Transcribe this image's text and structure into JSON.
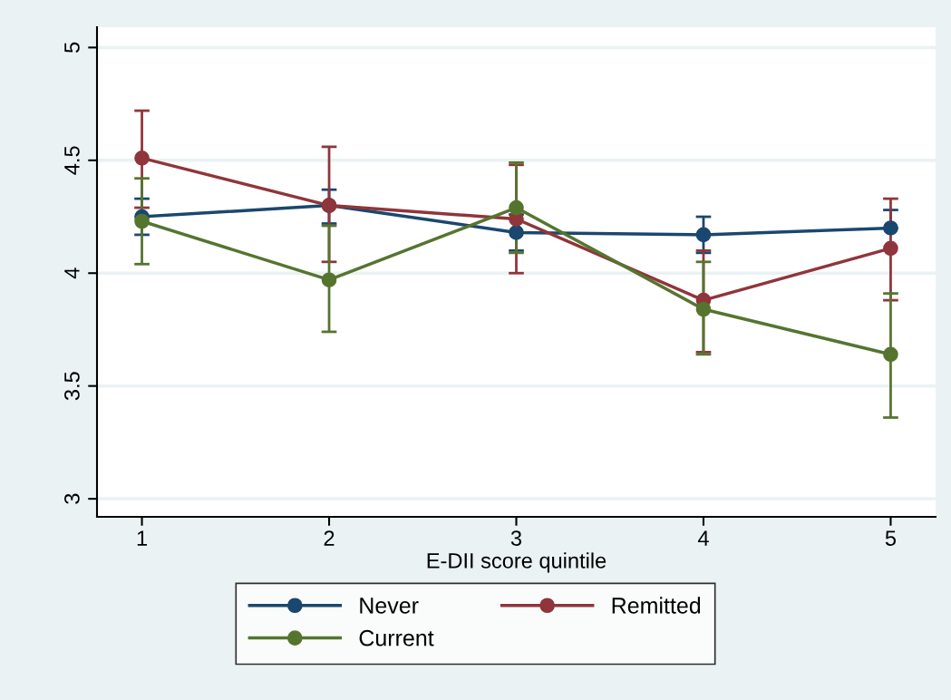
{
  "chart_data": {
    "type": "line",
    "xlabel": "E-DII score quintile",
    "x": [
      1,
      2,
      3,
      4,
      5
    ],
    "xlim": [
      0.76,
      5.24
    ],
    "xticks": [
      1,
      2,
      3,
      4,
      5
    ],
    "ylim": [
      2.92,
      5.09
    ],
    "yticks": [
      3,
      3.5,
      4,
      4.5,
      5
    ],
    "grid": "y",
    "legend": "bottom",
    "marker": "circle",
    "line_style": "solid",
    "series": [
      {
        "name": "Never",
        "color": "#1a476f",
        "values": [
          4.25,
          4.3,
          4.18,
          4.17,
          4.2
        ],
        "errors": [
          [
            4.17,
            4.33
          ],
          [
            4.22,
            4.37
          ],
          [
            4.1,
            4.26
          ],
          [
            4.09,
            4.25
          ],
          [
            4.2,
            4.28
          ]
        ]
      },
      {
        "name": "Remitted",
        "color": "#90353b",
        "values": [
          4.51,
          4.3,
          4.24,
          3.88,
          4.11
        ],
        "errors": [
          [
            4.29,
            4.72
          ],
          [
            4.05,
            4.56
          ],
          [
            4.0,
            4.48
          ],
          [
            3.65,
            4.1
          ],
          [
            3.88,
            4.33
          ]
        ]
      },
      {
        "name": "Current",
        "color": "#55752f",
        "values": [
          4.23,
          3.97,
          4.29,
          3.84,
          3.64
        ],
        "errors": [
          [
            4.04,
            4.42
          ],
          [
            3.74,
            4.21
          ],
          [
            4.09,
            4.49
          ],
          [
            3.64,
            4.05
          ],
          [
            3.36,
            3.91
          ]
        ]
      }
    ]
  }
}
